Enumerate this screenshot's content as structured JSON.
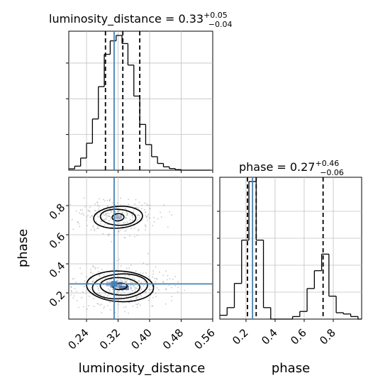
{
  "chart_data": [
    {
      "type": "histogram",
      "panel": "luminosity_distance-marginal",
      "title": {
        "param": "luminosity_distance",
        "value": "0.33",
        "upper": "+0.05",
        "lower": "−0.04"
      },
      "xlim": [
        0.195,
        0.56
      ],
      "ylim": [
        0,
        1.0
      ],
      "grid": true,
      "bin_edges": [
        0.195,
        0.21,
        0.225,
        0.24,
        0.255,
        0.27,
        0.285,
        0.3,
        0.315,
        0.33,
        0.345,
        0.36,
        0.375,
        0.39,
        0.405,
        0.42,
        0.435,
        0.45,
        0.465,
        0.48,
        0.495,
        0.51,
        0.525,
        0.54,
        0.555
      ],
      "counts": [
        0.01,
        0.03,
        0.09,
        0.2,
        0.38,
        0.62,
        0.86,
        0.96,
        1.0,
        0.94,
        0.78,
        0.55,
        0.34,
        0.19,
        0.1,
        0.05,
        0.025,
        0.012,
        0.004,
        0.0,
        0.0,
        0.0,
        0.0,
        0.0
      ],
      "quantile_lines": [
        0.288,
        0.332,
        0.375
      ],
      "truth": 0.31,
      "colors": {
        "hist": "#000000",
        "quantile": "#000000",
        "truth": "#4682b4",
        "grid": "#c0c0c0"
      }
    },
    {
      "type": "histogram2d",
      "panel": "phase-vs-luminosity_distance",
      "x_label": "luminosity_distance",
      "y_label": "phase",
      "xlim": [
        0.195,
        0.56
      ],
      "ylim": [
        0.02,
        0.995
      ],
      "x_ticks": [
        "0.24",
        "0.32",
        "0.40",
        "0.48",
        "0.56"
      ],
      "y_ticks": [
        "0.2",
        "0.4",
        "0.6",
        "0.8"
      ],
      "x_tick_values": [
        0.24,
        0.32,
        0.4,
        0.48,
        0.56
      ],
      "y_tick_values": [
        0.2,
        0.4,
        0.6,
        0.8
      ],
      "grid": true,
      "truth": [
        0.31,
        0.262
      ],
      "clusters": [
        {
          "center": [
            0.32,
            0.72
          ],
          "levels": [
            {
              "rx": 0.015,
              "ry": 0.025
            },
            {
              "rx": 0.045,
              "ry": 0.055
            },
            {
              "rx": 0.062,
              "ry": 0.075
            }
          ]
        },
        {
          "center": [
            0.325,
            0.245
          ],
          "levels": [
            {
              "rx": 0.018,
              "ry": 0.022
            },
            {
              "rx": 0.05,
              "ry": 0.06
            },
            {
              "rx": 0.07,
              "ry": 0.085
            },
            {
              "rx": 0.085,
              "ry": 0.105
            }
          ]
        }
      ],
      "density_cells": [
        {
          "x": 0.315,
          "y": 0.255,
          "w": 0.03,
          "h": 0.04,
          "level": 0.55
        },
        {
          "x": 0.335,
          "y": 0.235,
          "w": 0.025,
          "h": 0.03,
          "level": 0.85
        },
        {
          "x": 0.3,
          "y": 0.26,
          "w": 0.02,
          "h": 0.03,
          "level": 0.4
        },
        {
          "x": 0.32,
          "y": 0.72,
          "w": 0.02,
          "h": 0.03,
          "level": 0.4
        }
      ],
      "colors": {
        "contour": "#000000",
        "truth": "#4682b4",
        "density": "#4a6fa5",
        "points": "#9a9a9a",
        "grid": "#c0c0c0"
      }
    },
    {
      "type": "histogram",
      "panel": "phase-marginal",
      "title": {
        "param": "phase",
        "value": "0.27",
        "upper": "+0.46",
        "lower": "−0.06"
      },
      "x_label": "phase",
      "xlim": [
        0.02,
        0.995
      ],
      "ylim": [
        0,
        1.08
      ],
      "x_ticks": [
        "0.2",
        "0.4",
        "0.6",
        "0.8"
      ],
      "x_tick_values": [
        0.2,
        0.4,
        0.6,
        0.8
      ],
      "grid": true,
      "bin_edges": [
        0.02,
        0.07,
        0.12,
        0.17,
        0.22,
        0.27,
        0.32,
        0.37,
        0.42,
        0.47,
        0.52,
        0.57,
        0.62,
        0.67,
        0.72,
        0.77,
        0.82,
        0.87,
        0.92,
        0.97,
        0.995
      ],
      "counts": [
        0.03,
        0.09,
        0.28,
        0.62,
        1.08,
        0.62,
        0.09,
        0.0,
        0.0,
        0.0,
        0.02,
        0.06,
        0.24,
        0.38,
        0.51,
        0.18,
        0.05,
        0.04,
        0.02,
        0.0
      ],
      "quantile_lines": [
        0.21,
        0.27,
        0.73
      ],
      "truth": 0.245,
      "colors": {
        "hist": "#000000",
        "quantile": "#000000",
        "truth": "#4682b4",
        "grid": "#c0c0c0"
      }
    }
  ]
}
